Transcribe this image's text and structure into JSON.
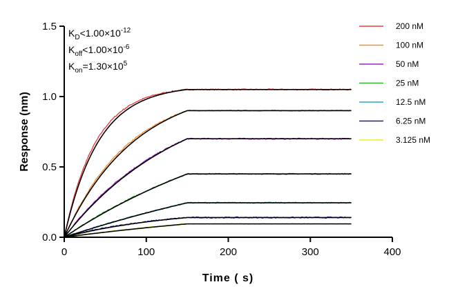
{
  "chart_data": {
    "type": "line",
    "title": "",
    "xlabel": "Time ( s)",
    "ylabel": "Response (nm)",
    "xlim": [
      0,
      400
    ],
    "ylim": [
      0,
      1.5
    ],
    "x_ticks": [
      "0",
      "100",
      "200",
      "300",
      "400"
    ],
    "y_ticks": [
      "0.0",
      "0.5",
      "1.0",
      "1.5"
    ],
    "grid": false,
    "legend_position": "top-right",
    "association_end_s": 150,
    "dissociation_end_s": 350,
    "annotations": [
      {
        "name": "kd",
        "main": "K",
        "sub": "D",
        "rest": "<1.00×10",
        "sup": "-12"
      },
      {
        "name": "koff",
        "main": "K",
        "sub": "off",
        "rest": "<1.00×10",
        "sup": "-6"
      },
      {
        "name": "kon",
        "main": "K",
        "sub": "on",
        "rest": "=1.30×10",
        "sup": "5"
      }
    ],
    "series": [
      {
        "name": "200 nM",
        "color": "#e8413f",
        "plateau": 1.05,
        "rate": 0.026
      },
      {
        "name": "100 nM",
        "color": "#f0902a",
        "plateau": 0.9,
        "rate": 0.0125
      },
      {
        "name": "50 nM",
        "color": "#a020c8",
        "plateau": 0.7,
        "rate": 0.0075
      },
      {
        "name": "25 nM",
        "color": "#2fb52f",
        "plateau": 0.45,
        "rate": 0.004
      },
      {
        "name": "12.5 nM",
        "color": "#2aa6c4",
        "plateau": 0.245,
        "rate": 0.0025
      },
      {
        "name": "6.25 nM",
        "color": "#1c1ca0",
        "plateau": 0.14,
        "rate": 0.008
      },
      {
        "name": "3.125 nM",
        "color": "#eeee22",
        "plateau": 0.095,
        "rate": 0.003
      }
    ]
  }
}
